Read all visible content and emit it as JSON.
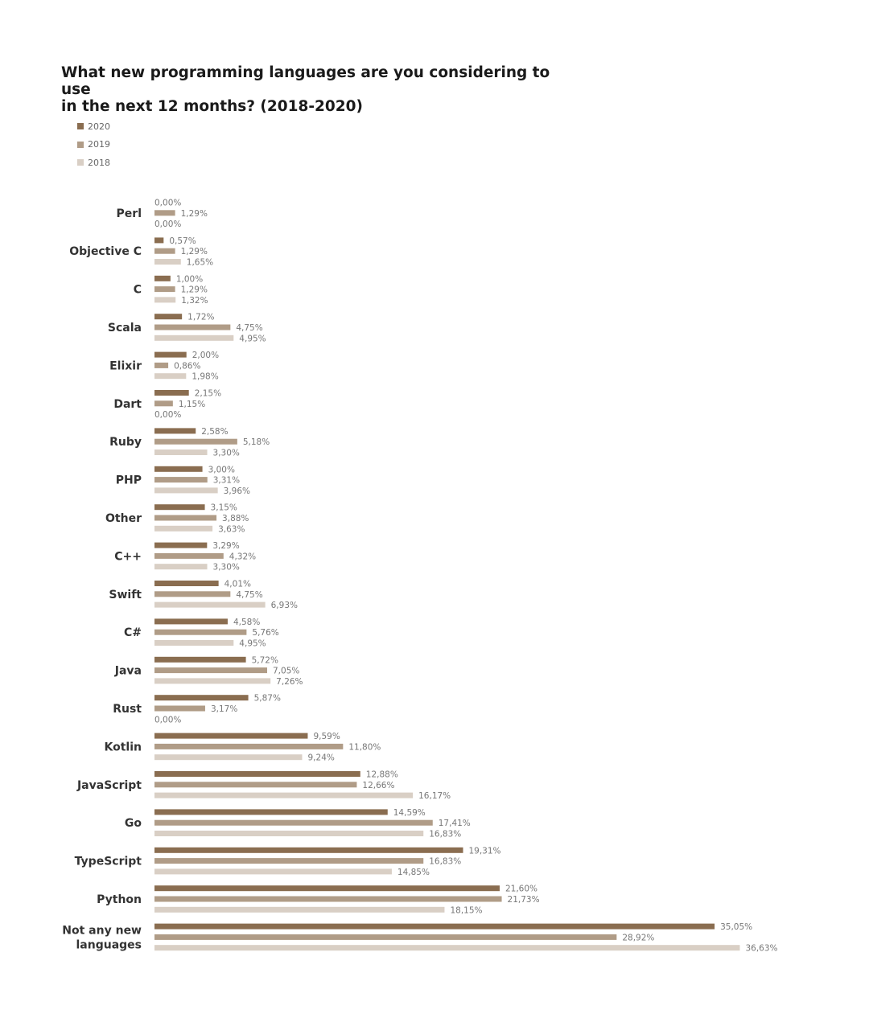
{
  "chart_data": {
    "type": "bar",
    "orientation": "horizontal",
    "title": "What new programming languages are you considering to use in the next 12 months? (2018-2020)",
    "title_lines": [
      "What new programming languages are you considering to use",
      "in the next 12 months? (2018-2020)"
    ],
    "legend_position": "top-left",
    "grid": false,
    "xlim": [
      0,
      40
    ],
    "categories": [
      "Perl",
      "Objective C",
      "C",
      "Scala",
      "Elixir",
      "Dart",
      "Ruby",
      "PHP",
      "Other",
      "C++",
      "Swift",
      "C#",
      "Java",
      "Rust",
      "Kotlin",
      "JavaScript",
      "Go",
      "TypeScript",
      "Python",
      "Not any new languages"
    ],
    "category_lines": {
      "Not any new languages": [
        "Not any new",
        "languages"
      ]
    },
    "series": [
      {
        "name": "2020",
        "color": "#8a6d50",
        "values": [
          0.0,
          0.57,
          1.0,
          1.72,
          2.0,
          2.15,
          2.58,
          3.0,
          3.15,
          3.29,
          4.01,
          4.58,
          5.72,
          5.87,
          9.59,
          12.88,
          14.59,
          19.31,
          21.6,
          35.05
        ],
        "labels": [
          "0,00%",
          "0,57%",
          "1,00%",
          "1,72%",
          "2,00%",
          "2,15%",
          "2,58%",
          "3,00%",
          "3,15%",
          "3,29%",
          "4,01%",
          "4,58%",
          "5,72%",
          "5,87%",
          "9,59%",
          "12,88%",
          "14,59%",
          "19,31%",
          "21,60%",
          "35,05%"
        ]
      },
      {
        "name": "2019",
        "color": "#b09c87",
        "values": [
          1.29,
          1.29,
          1.29,
          4.75,
          0.86,
          1.15,
          5.18,
          3.31,
          3.88,
          4.32,
          4.75,
          5.76,
          7.05,
          3.17,
          11.8,
          12.66,
          17.41,
          16.83,
          21.73,
          28.92
        ],
        "labels": [
          "1,29%",
          "1,29%",
          "1,29%",
          "4,75%",
          "0,86%",
          "1,15%",
          "5,18%",
          "3,31%",
          "3,88%",
          "4,32%",
          "4,75%",
          "5,76%",
          "7,05%",
          "3,17%",
          "11,80%",
          "12,66%",
          "17,41%",
          "16,83%",
          "21,73%",
          "28,92%"
        ]
      },
      {
        "name": "2018",
        "color": "#d9cfc5",
        "values": [
          0.0,
          1.65,
          1.32,
          4.95,
          1.98,
          0.0,
          3.3,
          3.96,
          3.63,
          3.3,
          6.93,
          4.95,
          7.26,
          0.0,
          9.24,
          16.17,
          16.83,
          14.85,
          18.15,
          36.63
        ],
        "labels": [
          "0,00%",
          "1,65%",
          "1,32%",
          "4,95%",
          "1,98%",
          "0,00%",
          "3,30%",
          "3,96%",
          "3,63%",
          "3,30%",
          "6,93%",
          "4,95%",
          "7,26%",
          "0,00%",
          "9,24%",
          "16,17%",
          "16,83%",
          "14,85%",
          "18,15%",
          "36,63%"
        ]
      }
    ]
  }
}
